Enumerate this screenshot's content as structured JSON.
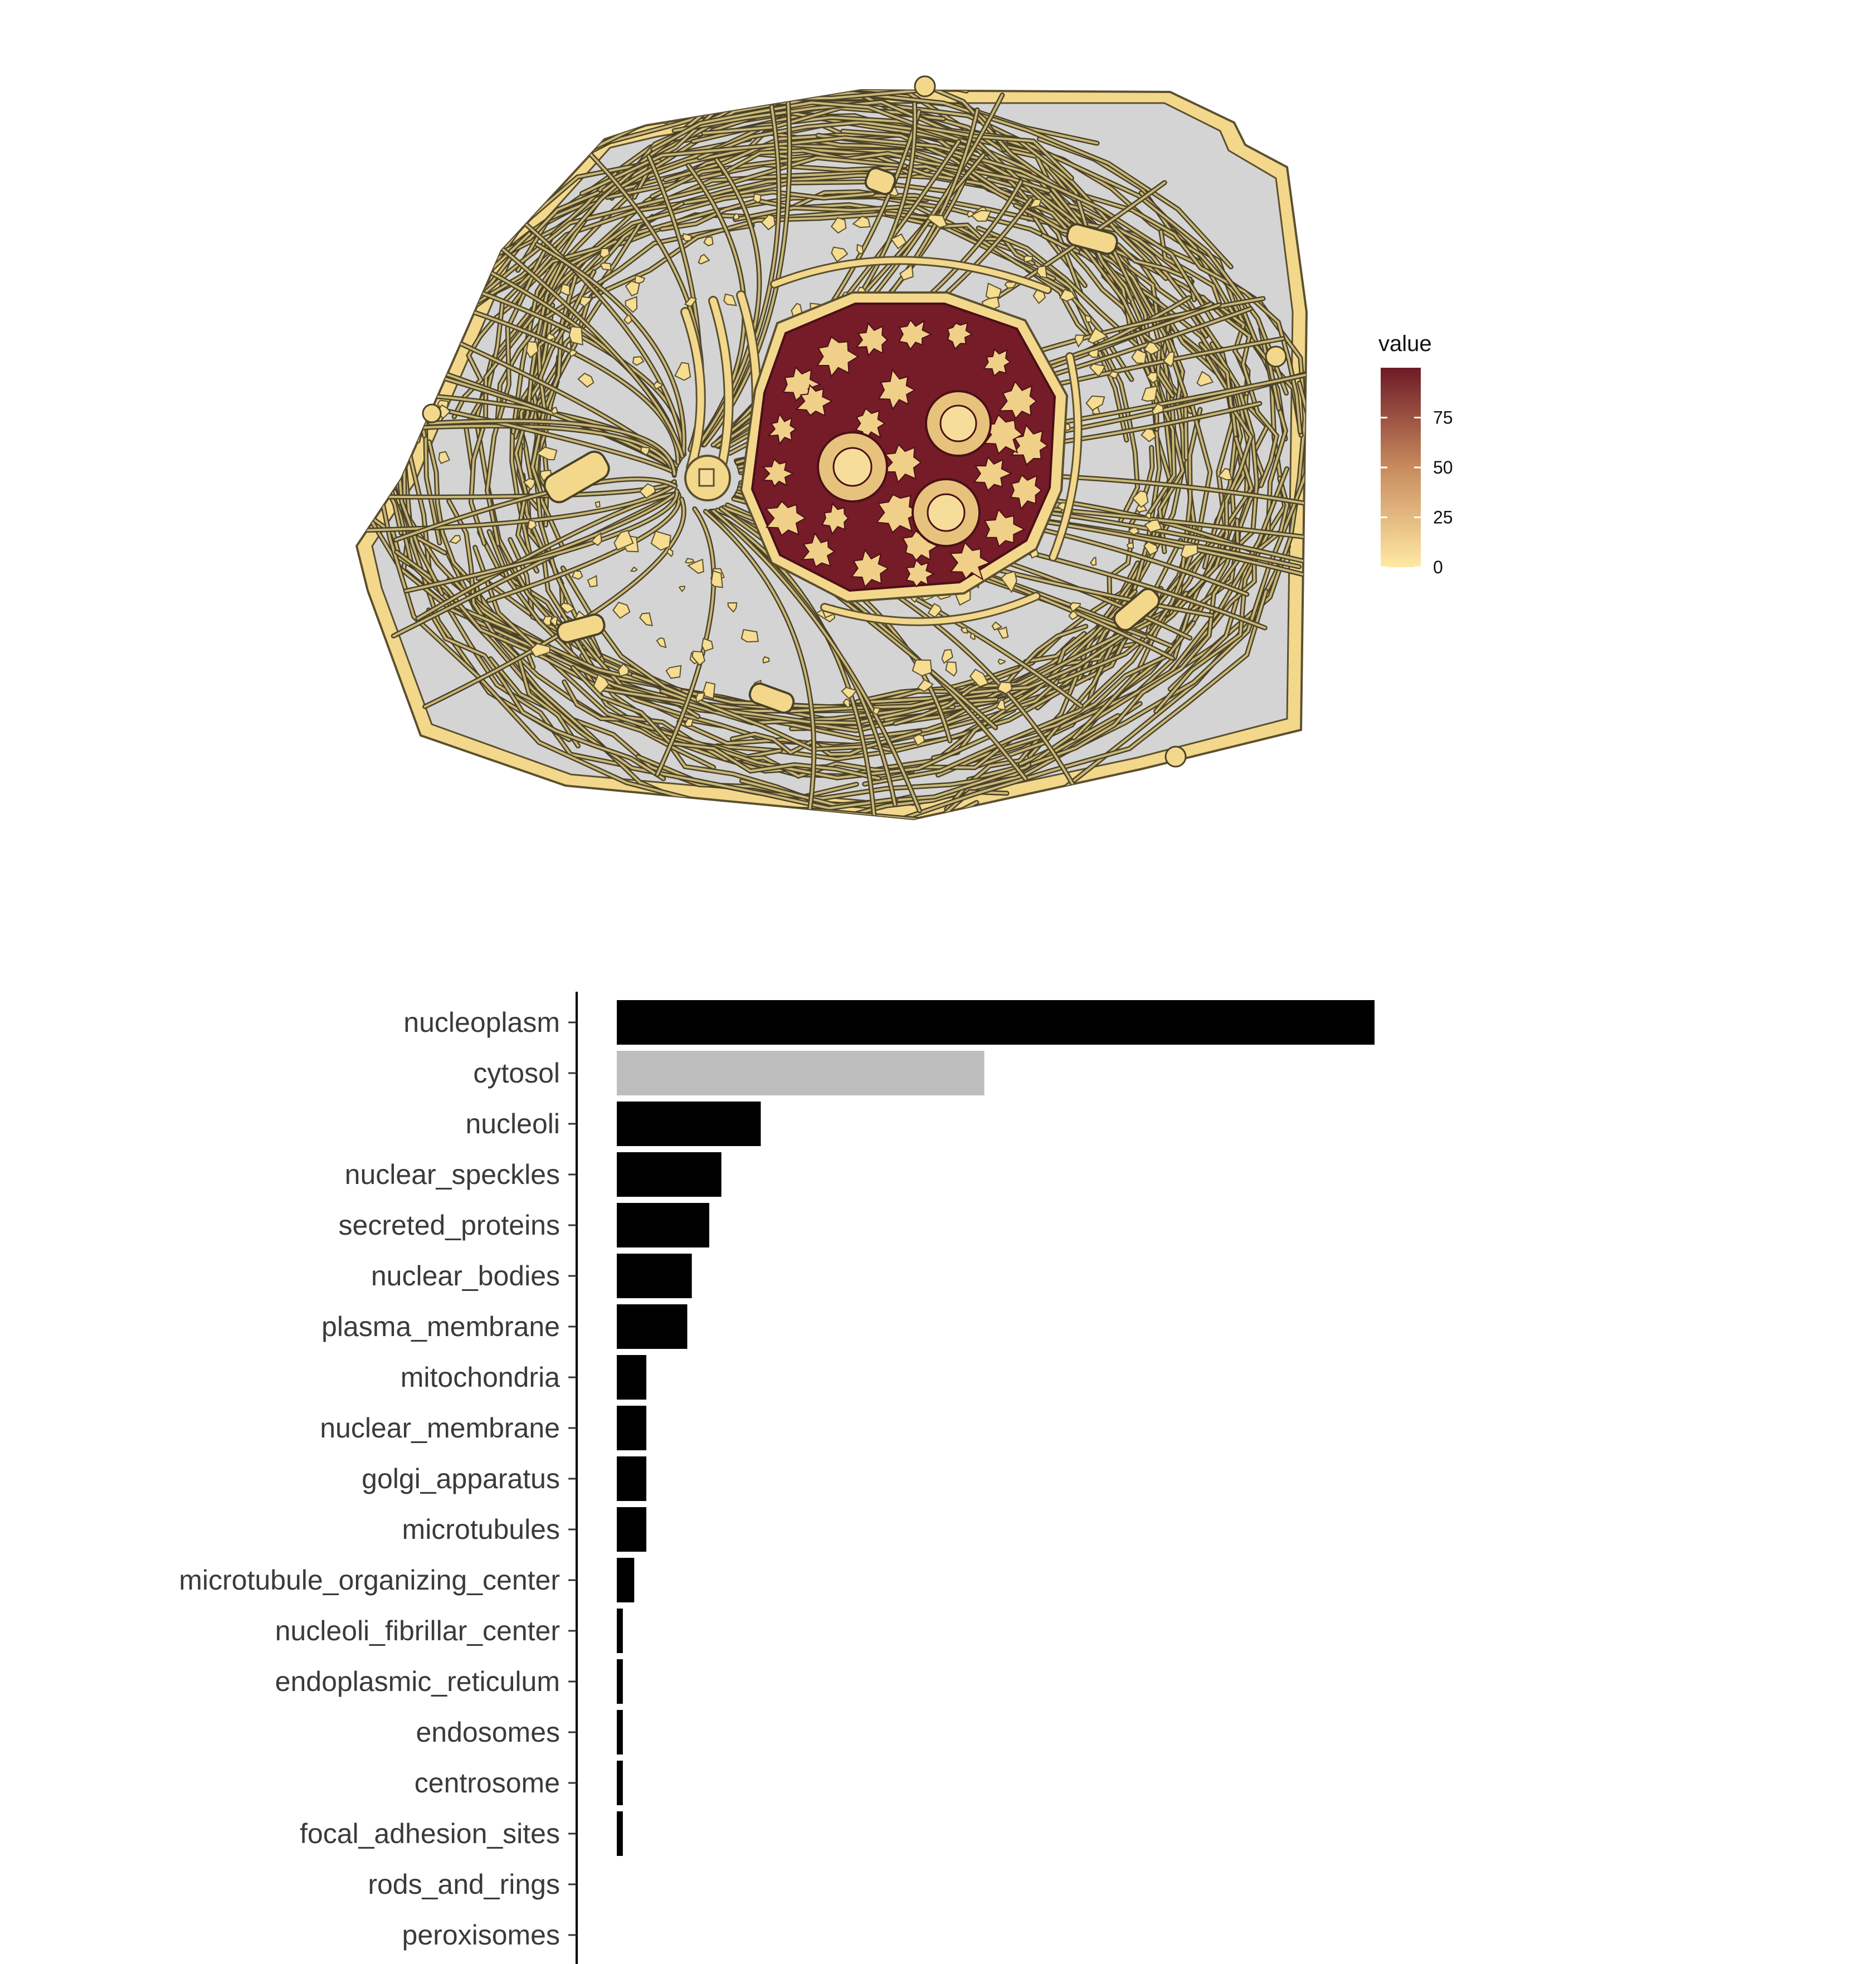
{
  "legend": {
    "title": "value",
    "ticks": [
      {
        "label": "75",
        "value": 75
      },
      {
        "label": "50",
        "value": 50
      },
      {
        "label": "25",
        "value": 25
      },
      {
        "label": "0",
        "value": 0
      }
    ],
    "range": [
      0,
      100
    ],
    "colors": {
      "low": "#FFE9A3",
      "mid": "#C88B5E",
      "high": "#6E1A26"
    }
  },
  "cell_map": {
    "type": "subcellular heatmap",
    "compartments": [
      {
        "name": "nucleoplasm",
        "value": 100
      },
      {
        "name": "cytosol",
        "value": null
      },
      {
        "name": "nucleoli",
        "value": 19
      },
      {
        "name": "nuclear_speckles",
        "value": 14
      },
      {
        "name": "secreted_proteins",
        "value": 12
      },
      {
        "name": "nuclear_bodies",
        "value": 10
      },
      {
        "name": "plasma_membrane",
        "value": 9
      },
      {
        "name": "mitochondria",
        "value": 4
      }
    ]
  },
  "chart_data": {
    "type": "bar",
    "orientation": "horizontal",
    "categories": [
      "nucleoplasm",
      "cytosol",
      "nucleoli",
      "nuclear_speckles",
      "secreted_proteins",
      "nuclear_bodies",
      "plasma_membrane",
      "mitochondria",
      "nuclear_membrane",
      "golgi_apparatus",
      "microtubules",
      "microtubule_organizing_center",
      "nucleoli_fibrillar_center",
      "endoplasmic_reticulum",
      "endosomes",
      "centrosome",
      "focal_adhesion_sites",
      "rods_and_rings",
      "peroxisomes"
    ],
    "values": [
      100,
      48.5,
      19,
      13.8,
      12.2,
      9.9,
      9.3,
      3.9,
      3.9,
      3.9,
      3.9,
      2.3,
      0.8,
      0.8,
      0.8,
      0.8,
      0.8,
      0,
      0
    ],
    "bar_colors": [
      "#000000",
      "#BEBEBE",
      "#000000",
      "#000000",
      "#000000",
      "#000000",
      "#000000",
      "#000000",
      "#000000",
      "#000000",
      "#000000",
      "#000000",
      "#000000",
      "#000000",
      "#000000",
      "#000000",
      "#000000",
      "#000000",
      "#000000"
    ],
    "xlim": [
      0,
      100
    ],
    "grid": false,
    "legend": "none"
  }
}
